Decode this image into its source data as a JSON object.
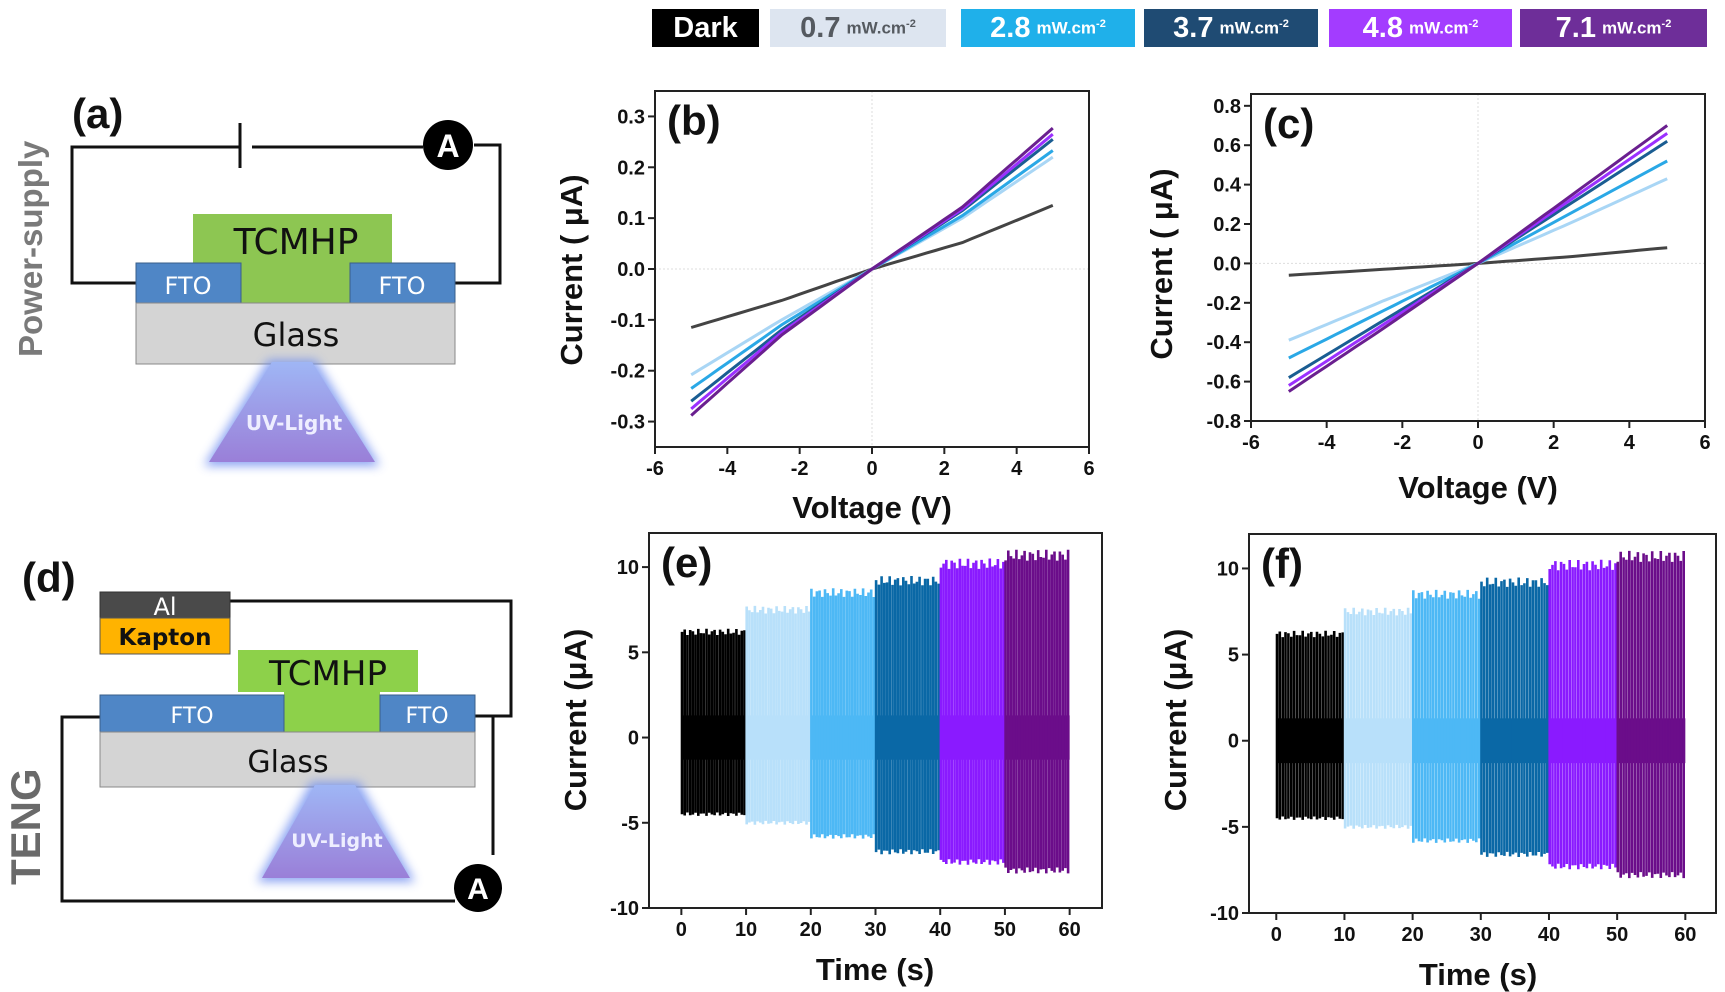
{
  "legend": [
    {
      "value": "Dark",
      "unit": "",
      "exp": "",
      "bg": "#000000",
      "fg": "#ffffff"
    },
    {
      "value": "0.7",
      "unit": "mW.cm",
      "exp": "-2",
      "bg": "#dde5f0",
      "fg": "#555a60"
    },
    {
      "value": "2.8",
      "unit": "mW.cm",
      "exp": "-2",
      "bg": "#1fb0ea",
      "fg": "#ffffff"
    },
    {
      "value": "3.7",
      "unit": "mW.cm",
      "exp": "-2",
      "bg": "#1f4b73",
      "fg": "#ffffff"
    },
    {
      "value": "4.8",
      "unit": "mW.cm",
      "exp": "-2",
      "bg": "#a33cff",
      "fg": "#ffffff"
    },
    {
      "value": "7.1",
      "unit": "mW.cm",
      "exp": "-2",
      "bg": "#6e2e99",
      "fg": "#ffffff"
    }
  ],
  "diagram_a": {
    "panel": "(a)",
    "side_label": "Power-supply",
    "active": "TCMHP",
    "electrode_left": "FTO",
    "electrode_right": "FTO",
    "substrate": "Glass",
    "light": "UV-Light",
    "meter": "A"
  },
  "diagram_d": {
    "panel": "(d)",
    "side_label": "TENG",
    "top_electrode": "Al",
    "tribo_layer": "Kapton",
    "active": "TCMHP",
    "electrode_left": "FTO",
    "electrode_right": "FTO",
    "substrate": "Glass",
    "light": "UV-Light",
    "meter": "A"
  },
  "chart_data": [
    {
      "panel": "(b)",
      "type": "line",
      "xlabel": "Voltage (V)",
      "ylabel": "Current ( μA)",
      "xlim": [
        -6,
        6
      ],
      "ylim": [
        -0.35,
        0.35
      ],
      "xticks": [
        "-6",
        "-4",
        "-2",
        "0",
        "2",
        "4",
        "6"
      ],
      "yticks": [
        "-0.3",
        "-0.2",
        "-0.1",
        "0.0",
        "0.1",
        "0.2",
        "0.3"
      ],
      "x": [
        -5,
        -2.5,
        0,
        2.5,
        5
      ],
      "series": [
        {
          "name": "Dark",
          "color": "#444444",
          "values": [
            -0.115,
            -0.062,
            0,
            0.052,
            0.125
          ]
        },
        {
          "name": "0.7 mW.cm-2",
          "color": "#a9d6f5",
          "values": [
            -0.208,
            -0.1,
            0,
            0.1,
            0.22
          ]
        },
        {
          "name": "2.8 mW.cm-2",
          "color": "#2aa8e6",
          "values": [
            -0.235,
            -0.11,
            0,
            0.105,
            0.233
          ]
        },
        {
          "name": "3.7 mW.cm-2",
          "color": "#1a5d92",
          "values": [
            -0.26,
            -0.12,
            0,
            0.115,
            0.255
          ]
        },
        {
          "name": "4.8 mW.cm-2",
          "color": "#9b30ff",
          "values": [
            -0.275,
            -0.125,
            0,
            0.118,
            0.265
          ]
        },
        {
          "name": "7.1 mW.cm-2",
          "color": "#6a1f8f",
          "values": [
            -0.288,
            -0.13,
            0,
            0.122,
            0.277
          ]
        }
      ]
    },
    {
      "panel": "(c)",
      "type": "line",
      "xlabel": "Voltage (V)",
      "ylabel": "Current ( μA)",
      "xlim": [
        -6,
        6
      ],
      "ylim": [
        -0.8,
        0.86
      ],
      "xticks": [
        "-6",
        "-4",
        "-2",
        "0",
        "2",
        "4",
        "6"
      ],
      "yticks": [
        "-0.8",
        "-0.6",
        "-0.4",
        "-0.2",
        "0.0",
        "0.2",
        "0.4",
        "0.6",
        "0.8"
      ],
      "x": [
        -5,
        -2.5,
        0,
        2.5,
        5
      ],
      "series": [
        {
          "name": "Dark",
          "color": "#444444",
          "values": [
            -0.06,
            -0.03,
            0,
            0.035,
            0.08
          ]
        },
        {
          "name": "0.7 mW.cm-2",
          "color": "#a9d6f5",
          "values": [
            -0.39,
            -0.19,
            0,
            0.21,
            0.43
          ]
        },
        {
          "name": "2.8 mW.cm-2",
          "color": "#2aa8e6",
          "values": [
            -0.48,
            -0.24,
            0,
            0.26,
            0.52
          ]
        },
        {
          "name": "3.7 mW.cm-2",
          "color": "#1a5d92",
          "values": [
            -0.58,
            -0.29,
            0,
            0.31,
            0.62
          ]
        },
        {
          "name": "4.8 mW.cm-2",
          "color": "#9b30ff",
          "values": [
            -0.62,
            -0.31,
            0,
            0.33,
            0.66
          ]
        },
        {
          "name": "7.1 mW.cm-2",
          "color": "#6a1f8f",
          "values": [
            -0.65,
            -0.33,
            0,
            0.35,
            0.7
          ]
        }
      ]
    },
    {
      "panel": "(e)",
      "type": "line",
      "xlabel": "Time (s)",
      "ylabel": "Current (μA)",
      "xlim": [
        -5,
        65
      ],
      "ylim": [
        -10,
        12
      ],
      "xticks": [
        "0",
        "10",
        "20",
        "30",
        "40",
        "50",
        "60"
      ],
      "yticks": [
        "-10",
        "-5",
        "0",
        "5",
        "10"
      ],
      "series": [
        {
          "name": "Dark",
          "color": "#000000",
          "t": [
            0,
            10
          ],
          "peak_pos": 6.2,
          "peak_neg": -4.5
        },
        {
          "name": "0.7 mW.cm-2",
          "color": "#b8e0fa",
          "t": [
            10,
            20
          ],
          "peak_pos": 7.5,
          "peak_neg": -5.0
        },
        {
          "name": "2.8 mW.cm-2",
          "color": "#4db8f5",
          "t": [
            20,
            30
          ],
          "peak_pos": 8.5,
          "peak_neg": -5.8
        },
        {
          "name": "3.7 mW.cm-2",
          "color": "#0a68a6",
          "t": [
            30,
            40
          ],
          "peak_pos": 9.2,
          "peak_neg": -6.7
        },
        {
          "name": "4.8 mW.cm-2",
          "color": "#8a1aff",
          "t": [
            40,
            50
          ],
          "peak_pos": 10.2,
          "peak_neg": -7.3
        },
        {
          "name": "7.1 mW.cm-2",
          "color": "#6b0d8a",
          "t": [
            50,
            60
          ],
          "peak_pos": 10.7,
          "peak_neg": -7.8
        }
      ]
    },
    {
      "panel": "(f)",
      "type": "line",
      "xlabel": "Time (s)",
      "ylabel": "Current (μA)",
      "xlim": [
        -4,
        64.5
      ],
      "ylim": [
        -10,
        12
      ],
      "xticks": [
        "0",
        "10",
        "20",
        "30",
        "40",
        "50",
        "60"
      ],
      "yticks": [
        "-10",
        "-5",
        "0",
        "5",
        "10"
      ],
      "series": [
        {
          "name": "Dark",
          "color": "#000000",
          "t": [
            0,
            10
          ],
          "peak_pos": 6.2,
          "peak_neg": -4.5
        },
        {
          "name": "0.7 mW.cm-2",
          "color": "#b8e0fa",
          "t": [
            10,
            20
          ],
          "peak_pos": 7.5,
          "peak_neg": -5.0
        },
        {
          "name": "2.8 mW.cm-2",
          "color": "#4db8f5",
          "t": [
            20,
            30
          ],
          "peak_pos": 8.5,
          "peak_neg": -5.8
        },
        {
          "name": "3.7 mW.cm-2",
          "color": "#0a68a6",
          "t": [
            30,
            40
          ],
          "peak_pos": 9.2,
          "peak_neg": -6.6
        },
        {
          "name": "4.8 mW.cm-2",
          "color": "#8a1aff",
          "t": [
            40,
            50
          ],
          "peak_pos": 10.2,
          "peak_neg": -7.3
        },
        {
          "name": "7.1 mW.cm-2",
          "color": "#6b0d8a",
          "t": [
            50,
            60
          ],
          "peak_pos": 10.7,
          "peak_neg": -7.8
        }
      ]
    }
  ]
}
